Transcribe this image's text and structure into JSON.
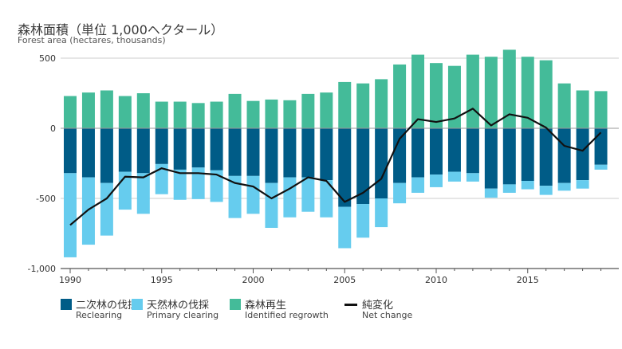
{
  "title_ja": "森林面積（単位 1,000ヘクタール）",
  "title_en": "Forest area (hectares, thousands)",
  "colors": {
    "reclearing": "#005C87",
    "primary": "#66CCEE",
    "regrowth": "#44BB99",
    "net": "#111111",
    "axis": "#555555",
    "grid": "#cccccc"
  },
  "legend": [
    {
      "key": "reclearing",
      "ja": "二次林の伐採",
      "en": "Reclearing"
    },
    {
      "key": "primary",
      "ja": "天然林の伐採",
      "en": "Primary clearing"
    },
    {
      "key": "regrowth",
      "ja": "森林再生",
      "en": "Identified regrowth"
    },
    {
      "key": "net",
      "ja": "純変化",
      "en": "Net change"
    }
  ],
  "chart_data": {
    "type": "bar",
    "title": "森林面積（単位 1,000ヘクタール）",
    "ylabel": "Forest area (hectares, thousands)",
    "ylim": [
      -1000,
      600
    ],
    "yticks": [
      -1000,
      -500,
      0,
      500
    ],
    "ytick_labels": [
      "-1,000",
      "-500",
      "0",
      "500"
    ],
    "xtick_labels": [
      "1990",
      "1995",
      "2000",
      "2005",
      "2010",
      "2015"
    ],
    "categories": [
      1990,
      1991,
      1992,
      1993,
      1994,
      1995,
      1996,
      1997,
      1998,
      1999,
      2000,
      2001,
      2002,
      2003,
      2004,
      2005,
      2006,
      2007,
      2008,
      2009,
      2010,
      2011,
      2012,
      2013,
      2014,
      2015,
      2016,
      2017,
      2018,
      2019
    ],
    "series": [
      {
        "name": "Identified regrowth",
        "values": [
          230,
          255,
          270,
          230,
          250,
          190,
          190,
          180,
          190,
          245,
          195,
          205,
          200,
          245,
          255,
          330,
          320,
          350,
          455,
          525,
          465,
          445,
          525,
          510,
          560,
          510,
          485,
          320,
          270,
          265
        ]
      },
      {
        "name": "Reclearing",
        "values": [
          -320,
          -350,
          -390,
          -310,
          -320,
          -255,
          -295,
          -280,
          -300,
          -340,
          -340,
          -390,
          -350,
          -350,
          -370,
          -560,
          -540,
          -500,
          -390,
          -350,
          -330,
          -310,
          -320,
          -430,
          -400,
          -375,
          -410,
          -390,
          -370,
          -260
        ]
      },
      {
        "name": "Primary clearing",
        "values": [
          -600,
          -480,
          -375,
          -270,
          -290,
          -215,
          -215,
          -225,
          -225,
          -300,
          -270,
          -320,
          -285,
          -245,
          -265,
          -295,
          -240,
          -205,
          -145,
          -110,
          -90,
          -70,
          -60,
          -65,
          -60,
          -60,
          -65,
          -55,
          -60,
          -35
        ]
      },
      {
        "name": "Net change",
        "values": [
          -690,
          -580,
          -500,
          -345,
          -350,
          -285,
          -320,
          -320,
          -330,
          -390,
          -415,
          -500,
          -430,
          -350,
          -375,
          -525,
          -460,
          -360,
          -75,
          65,
          45,
          70,
          140,
          20,
          100,
          75,
          5,
          -125,
          -160,
          -30
        ]
      }
    ]
  }
}
